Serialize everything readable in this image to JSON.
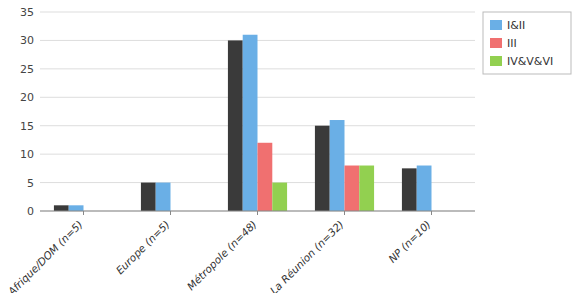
{
  "chart_data": {
    "type": "bar",
    "categories": [
      "Afrique/DOM (n=5)",
      "Europe (n=5)",
      "Métropole (n=48)",
      "La Réunion (n=32)",
      "NP (n=10)"
    ],
    "series": [
      {
        "color": "#3A3A3A",
        "values": [
          1,
          5,
          30,
          15,
          7.5
        ]
      },
      {
        "name": "I&II",
        "color": "#6AAFE6",
        "values": [
          1,
          5,
          31,
          16,
          8
        ]
      },
      {
        "name": "III",
        "color": "#F07070",
        "values": [
          0,
          0,
          12,
          8,
          0
        ]
      },
      {
        "name": "IV&V&VI",
        "color": "#92D050",
        "values": [
          0,
          0,
          5,
          8,
          0
        ]
      }
    ],
    "ylim": [
      0,
      35
    ],
    "yticks": [
      0,
      5,
      10,
      15,
      20,
      25,
      30,
      35
    ],
    "grid": true,
    "legend": "upper right"
  }
}
